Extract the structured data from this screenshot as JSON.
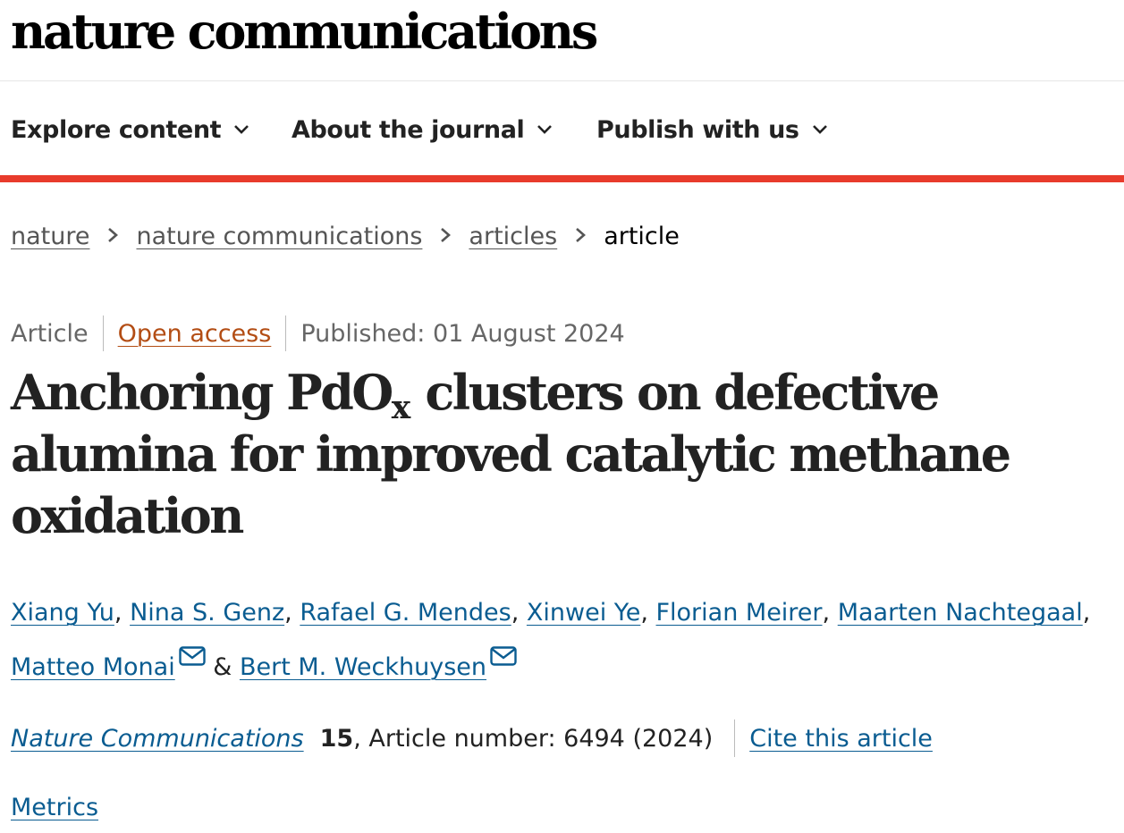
{
  "masthead": {
    "brand": "nature communications"
  },
  "nav": {
    "items": [
      {
        "label": "Explore content"
      },
      {
        "label": "About the journal"
      },
      {
        "label": "Publish with us"
      }
    ]
  },
  "breadcrumb": {
    "items": [
      "nature",
      "nature communications",
      "articles"
    ],
    "current": "article"
  },
  "meta": {
    "type": "Article",
    "access": "Open access",
    "published": "Published: 01 August 2024"
  },
  "title": {
    "part1": "Anchoring PdO",
    "subscript": "x",
    "part2": " clusters on defective alumina for improved catalytic methane oxidation"
  },
  "authors": [
    "Xiang Yu",
    "Nina S. Genz",
    "Rafael G. Mendes",
    "Xinwei Ye",
    "Florian Meirer",
    "Maarten Nachtegaal",
    "Matteo Monai",
    "Bert M. Weckhuysen"
  ],
  "author_separators": {
    "comma": ",",
    "and": "&"
  },
  "citation": {
    "journal": "Nature Communications",
    "volume": "15",
    "details": ", Article number: 6494 (2024)",
    "cite_label": "Cite this article"
  },
  "metrics_label": "Metrics",
  "colors": {
    "accent_red": "#e83b2c",
    "link_blue": "#0a5c91",
    "open_access_orange": "#b34d14"
  },
  "icons": {
    "nav_chevron": "chevron-down-icon",
    "breadcrumb_separator": "chevron-right-icon",
    "corresponding_author": "envelope-icon"
  }
}
